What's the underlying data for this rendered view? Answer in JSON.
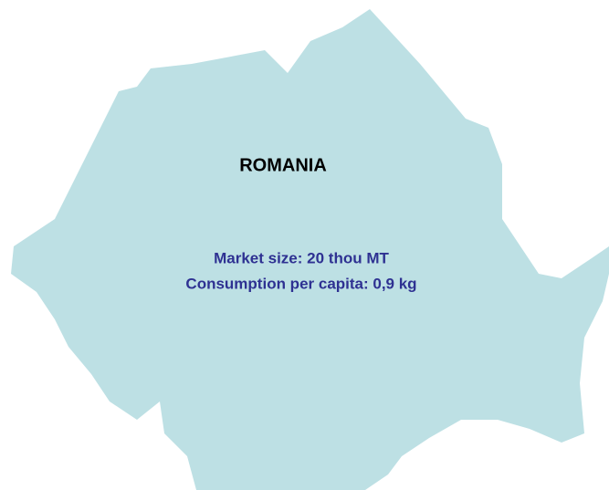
{
  "map": {
    "region": "ROMANIA",
    "notes": [
      "Market size: 20 thou MT",
      "Consumption per capita: 0,9 kg"
    ]
  }
}
